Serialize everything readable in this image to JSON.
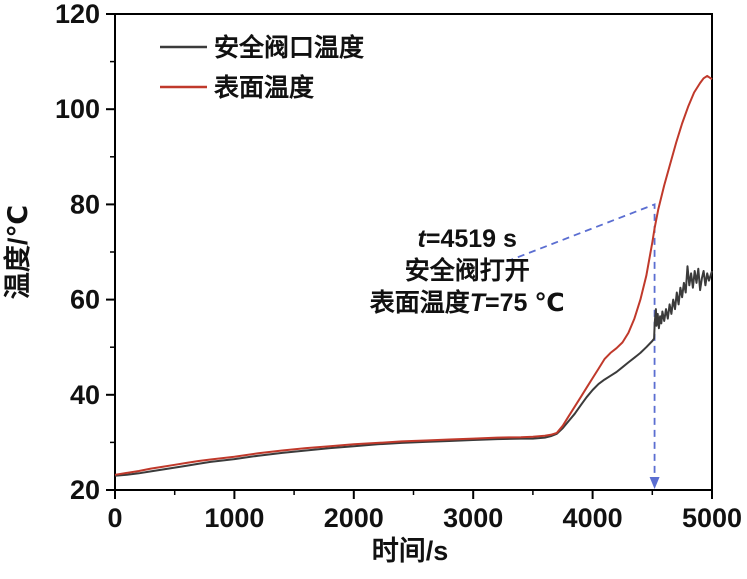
{
  "figure_title": "",
  "chart_data": {
    "type": "line",
    "title": "",
    "xlabel": "时间/s",
    "ylabel": "温度/℃",
    "xlim": [
      0,
      5000
    ],
    "ylim": [
      20,
      120
    ],
    "grid": false,
    "legend_position": "top-left-inside",
    "x_major_ticks": [
      0,
      1000,
      2000,
      3000,
      4000,
      5000
    ],
    "x_minor_ticks": [
      500,
      1500,
      2500,
      3500,
      4500
    ],
    "y_major_ticks": [
      20,
      40,
      60,
      80,
      100,
      120
    ],
    "y_minor_ticks": [
      30,
      50,
      70,
      90,
      110
    ],
    "series": [
      {
        "name": "安全阀口温度",
        "color": "#3b3b3b",
        "points": [
          [
            0,
            23
          ],
          [
            100,
            23.2
          ],
          [
            200,
            23.5
          ],
          [
            300,
            23.9
          ],
          [
            400,
            24.3
          ],
          [
            500,
            24.7
          ],
          [
            600,
            25.1
          ],
          [
            700,
            25.5
          ],
          [
            800,
            25.9
          ],
          [
            900,
            26.2
          ],
          [
            1000,
            26.5
          ],
          [
            1200,
            27.2
          ],
          [
            1400,
            27.8
          ],
          [
            1600,
            28.3
          ],
          [
            1800,
            28.8
          ],
          [
            2000,
            29.2
          ],
          [
            2200,
            29.6
          ],
          [
            2400,
            29.9
          ],
          [
            2600,
            30.1
          ],
          [
            2800,
            30.3
          ],
          [
            3000,
            30.5
          ],
          [
            3200,
            30.7
          ],
          [
            3400,
            30.8
          ],
          [
            3500,
            30.8
          ],
          [
            3550,
            30.9
          ],
          [
            3600,
            31
          ],
          [
            3650,
            31.3
          ],
          [
            3700,
            31.8
          ],
          [
            3750,
            33
          ],
          [
            3800,
            34.5
          ],
          [
            3850,
            36
          ],
          [
            3900,
            37.8
          ],
          [
            3950,
            39.5
          ],
          [
            4000,
            41
          ],
          [
            4050,
            42.3
          ],
          [
            4100,
            43.2
          ],
          [
            4150,
            44
          ],
          [
            4200,
            44.8
          ],
          [
            4250,
            45.8
          ],
          [
            4300,
            46.8
          ],
          [
            4350,
            47.8
          ],
          [
            4400,
            48.8
          ],
          [
            4450,
            50
          ],
          [
            4500,
            51.3
          ],
          [
            4515,
            51.8
          ],
          [
            4520,
            55
          ],
          [
            4530,
            58
          ],
          [
            4535,
            54.5
          ],
          [
            4545,
            57
          ],
          [
            4555,
            54
          ],
          [
            4565,
            56.5
          ],
          [
            4575,
            55
          ],
          [
            4585,
            57.5
          ],
          [
            4600,
            55.5
          ],
          [
            4615,
            58
          ],
          [
            4630,
            56
          ],
          [
            4645,
            59
          ],
          [
            4660,
            57
          ],
          [
            4675,
            60
          ],
          [
            4690,
            58
          ],
          [
            4705,
            61.5
          ],
          [
            4720,
            59
          ],
          [
            4735,
            62.5
          ],
          [
            4750,
            60.5
          ],
          [
            4765,
            63.5
          ],
          [
            4780,
            61.5
          ],
          [
            4795,
            67
          ],
          [
            4810,
            63
          ],
          [
            4825,
            65.5
          ],
          [
            4840,
            62.5
          ],
          [
            4855,
            66
          ],
          [
            4870,
            63.5
          ],
          [
            4885,
            66.5
          ],
          [
            4900,
            62
          ],
          [
            4915,
            64.5
          ],
          [
            4930,
            66
          ],
          [
            4945,
            63
          ],
          [
            4960,
            65.5
          ],
          [
            4975,
            64
          ],
          [
            5000,
            66
          ]
        ]
      },
      {
        "name": "表面温度",
        "color": "#c0392b",
        "points": [
          [
            0,
            23.2
          ],
          [
            100,
            23.6
          ],
          [
            200,
            24
          ],
          [
            300,
            24.5
          ],
          [
            400,
            24.9
          ],
          [
            500,
            25.3
          ],
          [
            600,
            25.7
          ],
          [
            700,
            26.1
          ],
          [
            800,
            26.4
          ],
          [
            900,
            26.7
          ],
          [
            1000,
            27
          ],
          [
            1200,
            27.7
          ],
          [
            1400,
            28.3
          ],
          [
            1600,
            28.8
          ],
          [
            1800,
            29.2
          ],
          [
            2000,
            29.6
          ],
          [
            2200,
            29.9
          ],
          [
            2400,
            30.2
          ],
          [
            2600,
            30.4
          ],
          [
            2800,
            30.6
          ],
          [
            3000,
            30.8
          ],
          [
            3200,
            31
          ],
          [
            3400,
            31.1
          ],
          [
            3500,
            31.2
          ],
          [
            3600,
            31.4
          ],
          [
            3650,
            31.6
          ],
          [
            3700,
            32
          ],
          [
            3750,
            33.5
          ],
          [
            3800,
            35.5
          ],
          [
            3850,
            37.5
          ],
          [
            3900,
            39.5
          ],
          [
            3950,
            41.5
          ],
          [
            4000,
            43.5
          ],
          [
            4050,
            45.5
          ],
          [
            4100,
            47.5
          ],
          [
            4150,
            48.8
          ],
          [
            4200,
            49.8
          ],
          [
            4250,
            51
          ],
          [
            4300,
            53
          ],
          [
            4350,
            56
          ],
          [
            4400,
            60
          ],
          [
            4450,
            65
          ],
          [
            4500,
            72
          ],
          [
            4519,
            75
          ],
          [
            4550,
            79
          ],
          [
            4600,
            84
          ],
          [
            4650,
            88.5
          ],
          [
            4700,
            93
          ],
          [
            4750,
            97
          ],
          [
            4800,
            100.5
          ],
          [
            4850,
            103.5
          ],
          [
            4900,
            105.5
          ],
          [
            4930,
            106.5
          ],
          [
            4960,
            107
          ],
          [
            5000,
            106.3
          ]
        ]
      }
    ],
    "annotation": {
      "anchor_x": 2950,
      "anchor_y": 71,
      "line_spacing_px": 32,
      "lines": [
        [
          {
            "text": "t",
            "italic": true
          },
          {
            "text": "=4519 s",
            "italic": false
          }
        ],
        [
          {
            "text": "安全阀打开",
            "italic": false
          }
        ],
        [
          {
            "text": "表面温度",
            "italic": false
          },
          {
            "text": "T",
            "italic": true
          },
          {
            "text": "=75 ℃",
            "italic": false
          }
        ]
      ]
    },
    "marker": {
      "x": 4519,
      "top_y": 80,
      "from_x": 3280,
      "from_y": 68,
      "color": "#5b6ed1",
      "style": "dashed",
      "arrow": "down-to-x-axis"
    }
  }
}
